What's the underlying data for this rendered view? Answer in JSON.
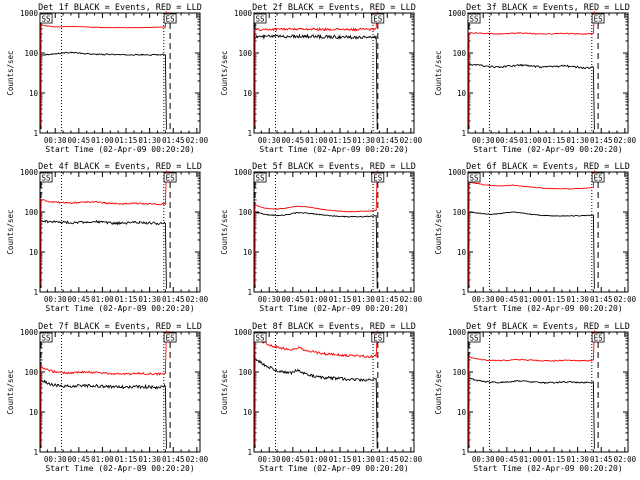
{
  "page": {
    "background": "#ffffff"
  },
  "colors": {
    "events": "#000000",
    "lld": "#ff0000",
    "axis": "#000000"
  },
  "chart_data": [
    {
      "type": "line",
      "title": "Det 1f BLACK = Events, RED = LLD",
      "xlabel": "Start Time (02-Apr-09 00:20:20)",
      "ylabel": "Counts/sec",
      "x_ticks": [
        "00:30",
        "00:45",
        "01:00",
        "01:15",
        "01:30",
        "01:45",
        "02:00"
      ],
      "y_ticks": [
        "1",
        "10",
        "100",
        "1000"
      ],
      "y_scale": "log",
      "ylim": [
        1,
        1000
      ],
      "xlim": [
        "00:20:20",
        "02:02:00"
      ],
      "dotted_vlines": [
        "00:34:00",
        "01:39:00"
      ],
      "dashed_vlines": [
        "00:21:00",
        "01:43:00"
      ],
      "event_labels": [
        {
          "text": "SS",
          "x": "00:21:00"
        },
        {
          "text": "ES",
          "x": "01:43:00"
        }
      ],
      "series": [
        {
          "name": "BLACK = Events",
          "color": "black",
          "x_start": "00:21:00",
          "x_end": "01:40:00",
          "values": [
            90,
            92,
            96,
            100,
            104,
            100,
            96,
            94,
            92,
            92,
            92,
            90,
            90,
            90,
            90,
            90,
            90,
            92
          ],
          "noise": 0.03
        },
        {
          "name": "RED = LLD",
          "color": "red",
          "x_start": "00:21:00",
          "x_end": "01:40:00",
          "values": [
            500,
            470,
            455,
            450,
            455,
            460,
            455,
            448,
            440,
            435,
            432,
            430,
            430,
            430,
            430,
            430,
            430,
            440,
            445,
            445
          ],
          "noise": 0.015,
          "end_jump": 1100
        }
      ]
    },
    {
      "type": "line",
      "title": "Det 2f BLACK = Events, RED = LLD",
      "xlabel": "Start Time (02-Apr-09 00:20:20)",
      "ylabel": "Counts/sec",
      "x_ticks": [
        "00:30",
        "00:45",
        "01:00",
        "01:15",
        "01:30",
        "01:45",
        "02:00"
      ],
      "y_ticks": [
        "1",
        "10",
        "100",
        "1000"
      ],
      "y_scale": "log",
      "ylim": [
        1,
        1000
      ],
      "xlim": [
        "00:20:20",
        "02:02:00"
      ],
      "dotted_vlines": [
        "00:34:00",
        "01:36:00"
      ],
      "dashed_vlines": [
        "00:21:00",
        "01:39:00"
      ],
      "event_labels": [
        {
          "text": "SS",
          "x": "00:21:00"
        },
        {
          "text": "ES",
          "x": "01:39:00"
        }
      ],
      "series": [
        {
          "name": "BLACK = Events",
          "color": "black",
          "x_start": "00:21:00",
          "x_end": "01:38:00",
          "values": [
            250,
            255,
            260,
            260,
            260,
            262,
            265,
            262,
            260,
            258,
            255,
            255,
            252,
            250,
            250,
            252,
            250,
            250
          ],
          "noise": 0.09
        },
        {
          "name": "RED = LLD",
          "color": "red",
          "x_start": "00:21:00",
          "x_end": "01:38:00",
          "values": [
            380,
            385,
            390,
            392,
            395,
            398,
            400,
            398,
            395,
            392,
            390,
            390,
            388,
            385,
            385,
            390,
            392,
            400
          ],
          "noise": 0.07,
          "end_jump": 1100
        }
      ]
    },
    {
      "type": "line",
      "title": "Det 3f BLACK = Events, RED = LLD",
      "xlabel": "Start Time (02-Apr-09 00:20:20)",
      "ylabel": "Counts/sec",
      "x_ticks": [
        "00:30",
        "00:45",
        "01:00",
        "01:15",
        "01:30",
        "01:45",
        "02:00"
      ],
      "y_ticks": [
        "1",
        "10",
        "100",
        "1000"
      ],
      "y_scale": "log",
      "ylim": [
        1,
        1000
      ],
      "xlim": [
        "00:20:20",
        "02:02:00"
      ],
      "dotted_vlines": [
        "00:34:00",
        "01:39:00"
      ],
      "dashed_vlines": [
        "00:21:00",
        "01:43:00"
      ],
      "event_labels": [
        {
          "text": "SS",
          "x": "00:21:00"
        },
        {
          "text": "ES",
          "x": "01:43:00"
        }
      ],
      "series": [
        {
          "name": "BLACK = Events",
          "color": "black",
          "x_start": "00:21:00",
          "x_end": "01:40:00",
          "values": [
            52,
            50,
            48,
            46,
            44,
            46,
            48,
            50,
            48,
            46,
            44,
            45,
            46,
            48,
            46,
            44,
            42,
            44
          ],
          "noise": 0.05
        },
        {
          "name": "RED = LLD",
          "color": "red",
          "x_start": "00:21:00",
          "x_end": "01:40:00",
          "values": [
            320,
            315,
            310,
            305,
            300,
            305,
            310,
            315,
            310,
            305,
            300,
            300,
            305,
            310,
            305,
            300,
            300,
            310
          ],
          "noise": 0.025,
          "end_jump": 1100
        }
      ]
    },
    {
      "type": "line",
      "title": "Det 4f BLACK = Events, RED = LLD",
      "xlabel": "Start Time (02-Apr-09 00:20:20)",
      "ylabel": "Counts/sec",
      "x_ticks": [
        "00:30",
        "00:45",
        "01:00",
        "01:15",
        "01:30",
        "01:45",
        "02:00"
      ],
      "y_ticks": [
        "1",
        "10",
        "100",
        "1000"
      ],
      "y_scale": "log",
      "ylim": [
        1,
        1000
      ],
      "xlim": [
        "00:20:20",
        "02:02:00"
      ],
      "dotted_vlines": [
        "00:34:00",
        "01:39:00"
      ],
      "dashed_vlines": [
        "00:21:00",
        "01:43:00"
      ],
      "event_labels": [
        {
          "text": "SS",
          "x": "00:21:00"
        },
        {
          "text": "ES",
          "x": "01:43:00"
        }
      ],
      "series": [
        {
          "name": "BLACK = Events",
          "color": "black",
          "x_start": "00:21:00",
          "x_end": "01:40:00",
          "values": [
            60,
            58,
            56,
            55,
            54,
            55,
            56,
            58,
            56,
            54,
            52,
            52,
            54,
            55,
            54,
            53,
            52,
            54
          ],
          "noise": 0.07
        },
        {
          "name": "RED = LLD",
          "color": "red",
          "x_start": "00:21:00",
          "x_end": "01:40:00",
          "values": [
            200,
            185,
            175,
            170,
            168,
            172,
            175,
            180,
            175,
            168,
            162,
            160,
            162,
            165,
            162,
            158,
            155,
            160
          ],
          "noise": 0.04,
          "end_jump": 1100
        }
      ]
    },
    {
      "type": "line",
      "title": "Det 5f BLACK = Events, RED = LLD",
      "xlabel": "Start Time (02-Apr-09 00:20:20)",
      "ylabel": "Counts/sec",
      "x_ticks": [
        "00:30",
        "00:45",
        "01:00",
        "01:15",
        "01:30",
        "01:45",
        "02:00"
      ],
      "y_ticks": [
        "1",
        "10",
        "100",
        "1000"
      ],
      "y_scale": "log",
      "ylim": [
        1,
        1000
      ],
      "xlim": [
        "00:20:20",
        "02:02:00"
      ],
      "dotted_vlines": [
        "00:34:00",
        "01:36:00"
      ],
      "dashed_vlines": [
        "00:21:00",
        "01:39:00"
      ],
      "event_labels": [
        {
          "text": "SS",
          "x": "00:21:00"
        },
        {
          "text": "ES",
          "x": "01:39:00"
        }
      ],
      "series": [
        {
          "name": "BLACK = Events",
          "color": "black",
          "x_start": "00:21:00",
          "x_end": "01:38:00",
          "values": [
            100,
            90,
            84,
            82,
            84,
            90,
            96,
            94,
            90,
            86,
            82,
            80,
            78,
            76,
            76,
            76,
            78,
            80
          ],
          "noise": 0.025
        },
        {
          "name": "RED = LLD",
          "color": "red",
          "x_start": "00:21:00",
          "x_end": "01:38:00",
          "values": [
            150,
            130,
            120,
            118,
            122,
            132,
            140,
            136,
            128,
            120,
            112,
            108,
            105,
            102,
            102,
            104,
            106,
            108
          ],
          "noise": 0.02,
          "end_jump": 1100
        }
      ]
    },
    {
      "type": "line",
      "title": "Det 6f BLACK = Events, RED = LLD",
      "xlabel": "Start Time (02-Apr-09 00:20:20)",
      "ylabel": "Counts/sec",
      "x_ticks": [
        "00:30",
        "00:45",
        "01:00",
        "01:15",
        "01:30",
        "01:45",
        "02:00"
      ],
      "y_ticks": [
        "1",
        "10",
        "100",
        "1000"
      ],
      "y_scale": "log",
      "ylim": [
        1,
        1000
      ],
      "xlim": [
        "00:20:20",
        "02:02:00"
      ],
      "dotted_vlines": [
        "00:34:00",
        "01:39:00"
      ],
      "dashed_vlines": [
        "00:21:00",
        "01:43:00"
      ],
      "event_labels": [
        {
          "text": "SS",
          "x": "00:21:00"
        },
        {
          "text": "ES",
          "x": "01:43:00"
        }
      ],
      "series": [
        {
          "name": "BLACK = Events",
          "color": "black",
          "x_start": "00:21:00",
          "x_end": "01:40:00",
          "values": [
            100,
            95,
            90,
            88,
            90,
            95,
            100,
            96,
            90,
            86,
            82,
            80,
            80,
            80,
            80,
            80,
            82,
            84
          ],
          "noise": 0.02
        },
        {
          "name": "RED = LLD",
          "color": "red",
          "x_start": "00:21:00",
          "x_end": "01:40:00",
          "values": [
            560,
            520,
            480,
            460,
            450,
            460,
            470,
            450,
            430,
            410,
            395,
            385,
            380,
            380,
            380,
            385,
            395,
            410
          ],
          "noise": 0.015,
          "end_jump": 1100
        }
      ]
    },
    {
      "type": "line",
      "title": "Det 7f BLACK = Events, RED = LLD",
      "xlabel": "Start Time (02-Apr-09 00:20:20)",
      "ylabel": "Counts/sec",
      "x_ticks": [
        "00:30",
        "00:45",
        "01:00",
        "01:15",
        "01:30",
        "01:45",
        "02:00"
      ],
      "y_ticks": [
        "1",
        "10",
        "100",
        "1000"
      ],
      "y_scale": "log",
      "ylim": [
        1,
        1000
      ],
      "xlim": [
        "00:20:20",
        "02:02:00"
      ],
      "dotted_vlines": [
        "00:34:00",
        "01:39:00"
      ],
      "dashed_vlines": [
        "00:21:00",
        "01:43:00"
      ],
      "event_labels": [
        {
          "text": "SS",
          "x": "00:21:00"
        },
        {
          "text": "ES",
          "x": "01:43:00"
        }
      ],
      "series": [
        {
          "name": "BLACK = Events",
          "color": "black",
          "x_start": "00:21:00",
          "x_end": "01:40:00",
          "values": [
            60,
            52,
            46,
            44,
            44,
            45,
            46,
            46,
            44,
            43,
            42,
            42,
            42,
            43,
            43,
            42,
            42,
            44
          ],
          "noise": 0.09
        },
        {
          "name": "RED = LLD",
          "color": "red",
          "x_start": "00:21:00",
          "x_end": "01:40:00",
          "values": [
            140,
            110,
            100,
            95,
            95,
            98,
            100,
            98,
            95,
            92,
            90,
            90,
            90,
            92,
            92,
            90,
            90,
            94
          ],
          "noise": 0.06,
          "end_jump": 1100
        }
      ]
    },
    {
      "type": "line",
      "title": "Det 8f BLACK = Events, RED = LLD",
      "xlabel": "Start Time (02-Apr-09 00:20:20)",
      "ylabel": "Counts/sec",
      "x_ticks": [
        "00:30",
        "00:45",
        "01:00",
        "01:15",
        "01:30",
        "01:45",
        "02:00"
      ],
      "y_ticks": [
        "1",
        "10",
        "100",
        "1000"
      ],
      "y_scale": "log",
      "ylim": [
        1,
        1000
      ],
      "xlim": [
        "00:20:20",
        "02:02:00"
      ],
      "dotted_vlines": [
        "00:34:00",
        "01:36:00"
      ],
      "dashed_vlines": [
        "00:21:00",
        "01:39:00"
      ],
      "event_labels": [
        {
          "text": "SS",
          "x": "00:21:00"
        },
        {
          "text": "ES",
          "x": "01:39:00"
        }
      ],
      "series": [
        {
          "name": "BLACK = Events",
          "color": "black",
          "x_start": "00:21:00",
          "x_end": "01:38:00",
          "values": [
            220,
            160,
            130,
            110,
            100,
            95,
            110,
            90,
            80,
            75,
            72,
            70,
            68,
            66,
            65,
            64,
            63,
            64
          ],
          "noise": 0.08
        },
        {
          "name": "RED = LLD",
          "color": "red",
          "x_start": "00:21:00",
          "x_end": "01:38:00",
          "values": [
            750,
            580,
            480,
            420,
            390,
            370,
            410,
            350,
            320,
            300,
            285,
            275,
            265,
            258,
            252,
            248,
            245,
            250
          ],
          "noise": 0.07,
          "end_jump": 1100
        }
      ]
    },
    {
      "type": "line",
      "title": "Det 9f BLACK = Events, RED = LLD",
      "xlabel": "Start Time (02-Apr-09 00:20:20)",
      "ylabel": "Counts/sec",
      "x_ticks": [
        "00:30",
        "00:45",
        "01:00",
        "01:15",
        "01:30",
        "01:45",
        "02:00"
      ],
      "y_ticks": [
        "1",
        "10",
        "100",
        "1000"
      ],
      "y_scale": "log",
      "ylim": [
        1,
        1000
      ],
      "xlim": [
        "00:20:20",
        "02:02:00"
      ],
      "dotted_vlines": [
        "00:34:00",
        "01:39:00"
      ],
      "dashed_vlines": [
        "00:21:00",
        "01:43:00"
      ],
      "event_labels": [
        {
          "text": "SS",
          "x": "00:21:00"
        },
        {
          "text": "ES",
          "x": "01:43:00"
        }
      ],
      "series": [
        {
          "name": "BLACK = Events",
          "color": "black",
          "x_start": "00:21:00",
          "x_end": "01:40:00",
          "values": [
            70,
            62,
            58,
            56,
            55,
            56,
            58,
            60,
            58,
            56,
            54,
            54,
            55,
            56,
            56,
            55,
            54,
            56
          ],
          "noise": 0.04
        },
        {
          "name": "RED = LLD",
          "color": "red",
          "x_start": "00:21:00",
          "x_end": "01:40:00",
          "values": [
            240,
            215,
            200,
            195,
            192,
            195,
            200,
            205,
            200,
            195,
            190,
            190,
            192,
            195,
            195,
            192,
            190,
            196
          ],
          "noise": 0.03,
          "end_jump": 1100
        }
      ]
    }
  ]
}
